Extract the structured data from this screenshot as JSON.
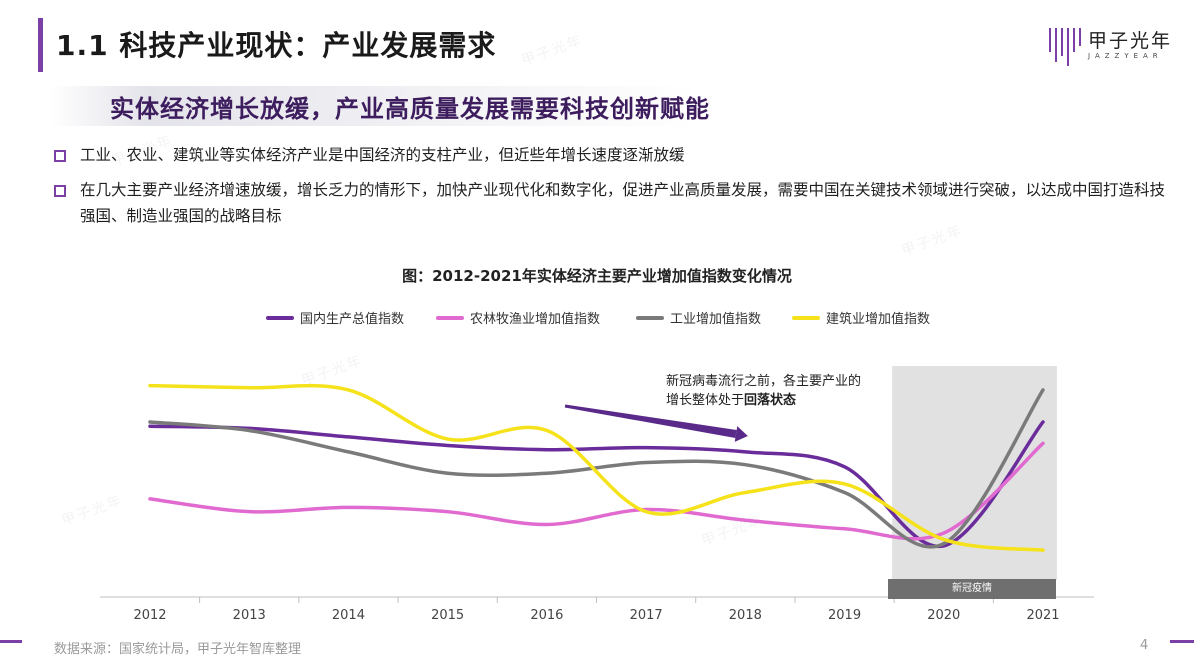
{
  "header": {
    "title": "1.1 科技产业现状：产业发展需求",
    "logo_text": "甲子光年",
    "logo_sub": "JAZZYEAR"
  },
  "subtitle": "实体经济增长放缓，产业高质量发展需要科技创新赋能",
  "bullets": [
    "工业、农业、建筑业等实体经济产业是中国经济的支柱产业，但近些年增长速度逐渐放缓",
    "在几大主要产业经济增速放缓，增长乏力的情形下，加快产业现代化和数字化，促进产业高质量发展，需要中国在关键技术领域进行突破，以达成中国打造科技强国、制造业强国的战略目标"
  ],
  "annotation": {
    "prefix": "新冠病毒流行之前，各主要产业的增长整体处于",
    "bold": "回落状态"
  },
  "colors": {
    "accent": "#7b3fa6",
    "gdp": "#6a2c9a",
    "agri": "#e06ad0",
    "industry": "#7a7a7a",
    "construction": "#f5e21a"
  },
  "chart_data": {
    "type": "line",
    "title": "图：2012-2021年实体经济主要产业增加值指数变化情况",
    "categories": [
      "2012",
      "2013",
      "2014",
      "2015",
      "2016",
      "2017",
      "2018",
      "2019",
      "2020",
      "2021"
    ],
    "series": [
      {
        "name": "国内生产总值指数",
        "color": "#6a2c9a",
        "values": [
          107.9,
          107.8,
          107.4,
          107.0,
          106.8,
          106.9,
          106.7,
          106.0,
          102.3,
          108.1
        ]
      },
      {
        "name": "农林牧渔业增加值指数",
        "color": "#e06ad0",
        "values": [
          104.5,
          103.9,
          104.1,
          103.9,
          103.3,
          104.0,
          103.5,
          103.1,
          102.9,
          107.1
        ]
      },
      {
        "name": "工业增加值指数",
        "color": "#7a7a7a",
        "values": [
          108.1,
          107.7,
          106.7,
          105.7,
          105.7,
          106.2,
          106.1,
          104.8,
          102.4,
          109.6
        ]
      },
      {
        "name": "建筑业增加值指数",
        "color": "#f5e21a",
        "values": [
          109.8,
          109.7,
          109.6,
          107.3,
          107.7,
          103.9,
          104.8,
          105.2,
          102.6,
          102.1
        ]
      }
    ],
    "ylim": [
      100,
      111
    ],
    "shaded_region": {
      "from": "2020",
      "to": "2021",
      "label": "新冠疫情"
    },
    "trend_arrow": {
      "from": "2016",
      "to": "2018",
      "meaning": "回落"
    },
    "xlabel": "",
    "ylabel": ""
  },
  "footer": {
    "source": "数据来源：国家统计局，甲子光年智库整理",
    "page": "4"
  }
}
